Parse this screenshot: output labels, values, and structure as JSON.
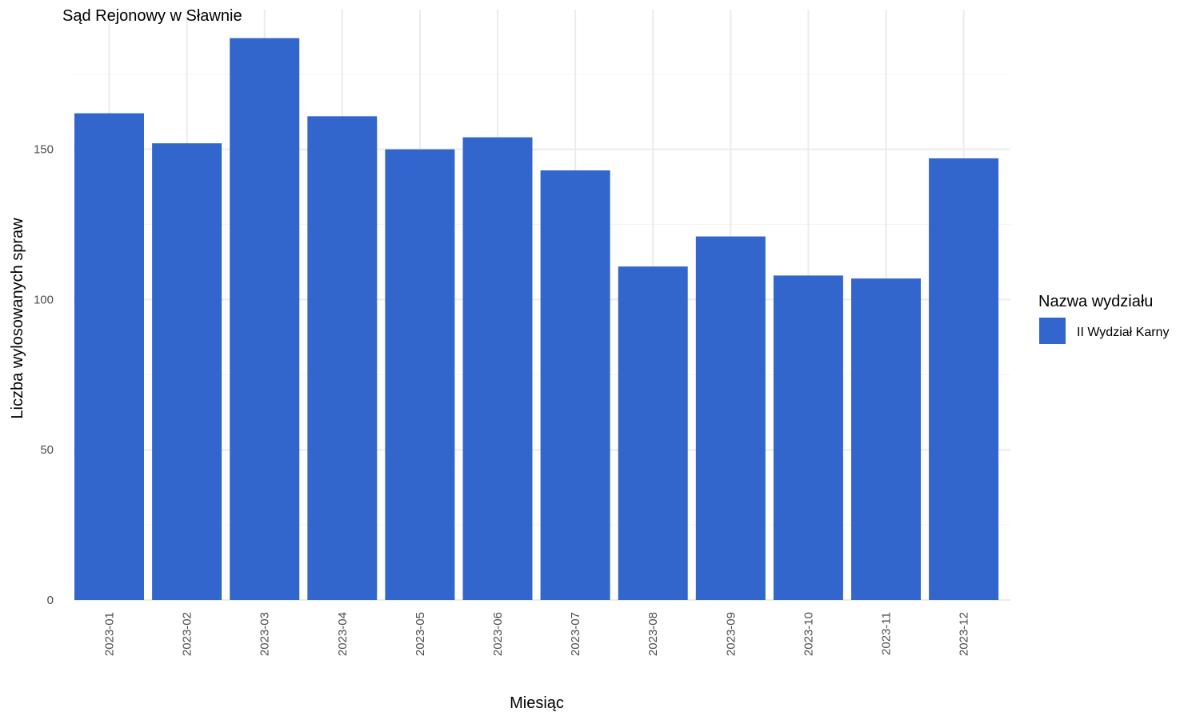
{
  "chart_data": {
    "type": "bar",
    "title": "Sąd Rejonowy w Sławnie",
    "xlabel": "Miesiąc",
    "ylabel": "Liczba wylosowanych spraw",
    "categories": [
      "2023-01",
      "2023-02",
      "2023-03",
      "2023-04",
      "2023-05",
      "2023-06",
      "2023-07",
      "2023-08",
      "2023-09",
      "2023-10",
      "2023-11",
      "2023-12"
    ],
    "series": [
      {
        "name": "II Wydział Karny",
        "color": "#3366cc",
        "values": [
          162,
          152,
          187,
          161,
          150,
          154,
          143,
          111,
          121,
          108,
          107,
          147
        ]
      }
    ],
    "ylim": [
      0,
      196.5
    ],
    "yticks": [
      0,
      50,
      100,
      150
    ],
    "grid": true,
    "legend_title": "Nazwa wydziału",
    "legend_position": "right"
  }
}
